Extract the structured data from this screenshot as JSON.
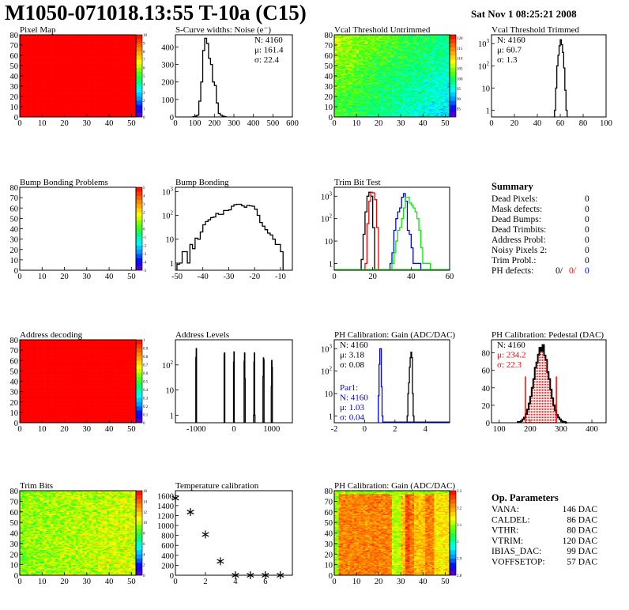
{
  "header": {
    "title": "M1050-071018.13:55 T-10a (C15)",
    "date": "Sat Nov  1 08:25:21 2008"
  },
  "palette": [
    "#6600cc",
    "#0000ff",
    "#0099ff",
    "#00ffff",
    "#00ff66",
    "#66ff00",
    "#ffff00",
    "#ffaa00",
    "#ff5500",
    "#ff0000"
  ],
  "chart_data": [
    {
      "id": "pixel-map",
      "type": "heatmap",
      "title": "Pixel Map",
      "xlim": [
        0,
        52
      ],
      "ylim": [
        0,
        80
      ],
      "xticks": [
        0,
        10,
        20,
        30,
        40,
        50
      ],
      "yticks": [
        0,
        10,
        20,
        30,
        40,
        50,
        60,
        70,
        80
      ],
      "zlim": [
        0,
        10
      ],
      "zticks": [
        "0",
        "1",
        "2",
        "3",
        "4",
        "5",
        "6",
        "7",
        "8",
        "9",
        "10"
      ],
      "pattern": "uniform",
      "value": 10
    },
    {
      "id": "s-curve-widths",
      "type": "bar",
      "title": "S-Curve widths: Noise (e⁻)",
      "xlim": [
        0,
        600
      ],
      "ylim": [
        0,
        470
      ],
      "xticks": [
        0,
        100,
        200,
        300,
        400,
        500,
        600
      ],
      "yticks": [
        0,
        100,
        200,
        300,
        400
      ],
      "log": false,
      "series": [
        {
          "color": "#000000",
          "x0": 90,
          "bw": 10,
          "values": [
            2,
            5,
            10,
            90,
            200,
            380,
            450,
            420,
            335,
            300,
            200,
            180,
            80,
            20,
            10,
            5,
            2
          ]
        }
      ],
      "stats": [
        {
          "text": "N: 4160",
          "color": "#000000"
        },
        {
          "text": "μ: 161.4",
          "color": "#000000"
        },
        {
          "text": "σ: 22.4",
          "color": "#000000"
        }
      ],
      "stats_pos": "top-right"
    },
    {
      "id": "vcal-untrimmed",
      "type": "heatmap",
      "title": "Vcal Threshold Untrimmed",
      "xlim": [
        0,
        52
      ],
      "ylim": [
        0,
        80
      ],
      "xticks": [
        0,
        10,
        20,
        30,
        40,
        50
      ],
      "yticks": [
        0,
        10,
        20,
        30,
        40,
        50,
        60,
        70,
        80
      ],
      "zlim": [
        81,
        125
      ],
      "zticks": [
        "85",
        "90",
        "95",
        "100",
        "105",
        "110",
        "115",
        "120"
      ],
      "pattern": "vcal"
    },
    {
      "id": "vcal-trimmed",
      "type": "bar",
      "title": "Vcal Threshold Trimmed",
      "xlim": [
        0,
        100
      ],
      "ylim": [
        0.5,
        2500
      ],
      "xticks": [
        0,
        20,
        40,
        60,
        80,
        100
      ],
      "yticks": [
        1,
        10,
        100,
        1000
      ],
      "log": true,
      "series": [
        {
          "color": "#000000",
          "x0": 54,
          "bw": 1,
          "values": [
            0,
            1,
            10,
            100,
            300,
            800,
            1500,
            900,
            400,
            80,
            8,
            1
          ]
        }
      ],
      "stats": [
        {
          "text": "N: 4160",
          "color": "#000000"
        },
        {
          "text": "μ: 60.7",
          "color": "#000000"
        },
        {
          "text": "σ:  1.3",
          "color": "#000000"
        }
      ],
      "stats_pos": "top-left"
    },
    {
      "id": "bump-bonding-problems",
      "type": "heatmap",
      "title": "Bump Bonding Problems",
      "xlim": [
        0,
        52
      ],
      "ylim": [
        0,
        80
      ],
      "xticks": [
        0,
        10,
        20,
        30,
        40,
        50
      ],
      "yticks": [
        0,
        10,
        20,
        30,
        40,
        50,
        60,
        70,
        80
      ],
      "zlim": [
        -5,
        5
      ],
      "zticks": [
        "-5",
        "-4",
        "-3",
        "-2",
        "-1",
        "0",
        "1",
        "2",
        "3",
        "4",
        "5"
      ],
      "pattern": "empty"
    },
    {
      "id": "bump-bonding",
      "type": "bar",
      "title": "Bump Bonding",
      "xlim": [
        -50.6,
        -5.4
      ],
      "ylim": [
        0.5,
        1500
      ],
      "xticks": [
        -50,
        -40,
        -30,
        -20,
        -10
      ],
      "yticks": [
        1,
        10,
        100,
        1000
      ],
      "log": true,
      "series": [
        {
          "color": "#000000",
          "x0": -50,
          "bw": 1,
          "values": [
            0.9,
            1,
            3,
            3,
            1,
            6,
            4,
            11,
            10,
            20,
            40,
            55,
            65,
            80,
            85,
            120,
            110,
            110,
            160,
            160,
            170,
            240,
            280,
            290,
            290,
            250,
            220,
            260,
            250,
            240,
            180,
            100,
            50,
            35,
            25,
            18,
            15,
            10,
            6,
            6,
            3
          ]
        }
      ]
    },
    {
      "id": "trim-bit-test",
      "type": "bar",
      "title": "Trim Bit Test",
      "xlim": [
        0,
        60
      ],
      "ylim": [
        0.5,
        2500
      ],
      "xticks": [
        0,
        20,
        40,
        60
      ],
      "yticks": [
        1,
        10,
        100,
        1000
      ],
      "log": true,
      "series": [
        {
          "color": "#000000",
          "x0": 14,
          "bw": 1,
          "values": [
            1.5,
            20,
            200,
            1000,
            1500,
            1000,
            40
          ]
        },
        {
          "color": "#ff0000",
          "x0": 16,
          "bw": 1,
          "values": [
            1,
            60,
            600,
            1500,
            1400,
            700,
            40
          ]
        },
        {
          "color": "#0000ff",
          "x0": 29,
          "bw": 1,
          "values": [
            1,
            3,
            30,
            100,
            200,
            300,
            900,
            1300,
            600,
            30,
            20,
            5,
            1,
            1,
            1,
            1
          ]
        },
        {
          "color": "#00ee00",
          "x0": 30,
          "bw": 1,
          "values": [
            1,
            3,
            10,
            30,
            40,
            100,
            300,
            900,
            900,
            500,
            400,
            300,
            200,
            100,
            30,
            5,
            1,
            1,
            1,
            1
          ]
        }
      ]
    },
    {
      "id": "address-decoding",
      "type": "heatmap",
      "title": "Address decoding",
      "xlim": [
        0,
        52
      ],
      "ylim": [
        0,
        80
      ],
      "xticks": [
        0,
        10,
        20,
        30,
        40,
        50
      ],
      "yticks": [
        0,
        10,
        20,
        30,
        40,
        50,
        60,
        70,
        80
      ],
      "zlim": [
        0,
        1
      ],
      "zticks": [
        "0",
        "0.1",
        "0.2",
        "0.3",
        "0.4",
        "0.5",
        "0.6",
        "0.7",
        "0.8",
        "0.9",
        "1"
      ],
      "pattern": "uniform",
      "value": 1
    },
    {
      "id": "address-levels",
      "type": "bar",
      "title": "Address Levels",
      "xlim": [
        -1550,
        1550
      ],
      "ylim": [
        0.5,
        1000
      ],
      "xticks": [
        -1000,
        0,
        1000
      ],
      "yticks": [
        1,
        10,
        100
      ],
      "log": true,
      "series": [
        {
          "color": "#000000",
          "x0": -1010,
          "bw": 10,
          "values": [
            200,
            450
          ]
        },
        {
          "color": "#000000",
          "x0": -260,
          "bw": 10,
          "values": [
            270,
            300
          ]
        },
        {
          "color": "#000000",
          "x0": -10,
          "bw": 10,
          "values": [
            130,
            330
          ]
        },
        {
          "color": "#000000",
          "x0": 270,
          "bw": 10,
          "values": [
            140,
            300,
            28
          ]
        },
        {
          "color": "#000000",
          "x0": 520,
          "bw": 10,
          "values": [
            1,
            130,
            300,
            1
          ]
        },
        {
          "color": "#000000",
          "x0": 770,
          "bw": 10,
          "values": [
            35,
            190,
            160
          ]
        },
        {
          "color": "#000000",
          "x0": 990,
          "bw": 10,
          "values": [
            14,
            150,
            80
          ]
        }
      ]
    },
    {
      "id": "ph-gain-hist",
      "type": "bar",
      "title": "PH Calibration: Gain (ADC/DAC)",
      "xlim": [
        -2,
        5.6
      ],
      "ylim": [
        0.5,
        2500
      ],
      "xticks": [
        -2,
        0,
        2,
        4
      ],
      "yticks": [
        1,
        10,
        100,
        1000
      ],
      "log": true,
      "series": [
        {
          "color": "#0000ff",
          "x0": 0.9,
          "bw": 0.05,
          "values": [
            8,
            200,
            1000,
            1000,
            20,
            1
          ]
        },
        {
          "color": "#000000",
          "x0": 2.8,
          "bw": 0.05,
          "values": [
            1,
            10,
            30,
            150,
            400,
            700,
            400,
            10,
            1
          ]
        }
      ],
      "stats": [
        {
          "text": "N: 4160",
          "color": "#000000"
        },
        {
          "text": "μ: 3.18",
          "color": "#000000"
        },
        {
          "text": "σ: 0.08",
          "color": "#000000"
        }
      ],
      "stats_pos": "top-left",
      "stats2": [
        {
          "text": "Par1:",
          "color": "#0000ff"
        },
        {
          "text": "N: 4160",
          "color": "#0000ff"
        },
        {
          "text": "μ: 1.03",
          "color": "#0000ff"
        },
        {
          "text": "σ: 0.04",
          "color": "#0000ff"
        }
      ]
    },
    {
      "id": "ph-pedestal",
      "type": "bar",
      "title": "PH Calibration: Pedestal (DAC)",
      "xlim": [
        75,
        446
      ],
      "ylim": [
        0,
        95
      ],
      "xticks": [
        100,
        200,
        300,
        400
      ],
      "yticks": [
        0,
        20,
        40,
        60,
        80
      ],
      "log": false,
      "series": [
        {
          "color": "#000000",
          "x0": 160,
          "bw": 5,
          "values": [
            1,
            1,
            2,
            4,
            6,
            10,
            15,
            22,
            30,
            40,
            50,
            63,
            69,
            78,
            86,
            82,
            89,
            77,
            72,
            58,
            50,
            38,
            28,
            20,
            14,
            9,
            6,
            4,
            2,
            1,
            1,
            0
          ]
        }
      ],
      "fit_range": [
        185,
        285
      ],
      "fit_color": "#ff0000",
      "stats": [
        {
          "text": "N: 4160",
          "color": "#000000"
        },
        {
          "text": "μ: 234.2",
          "color": "#ff0000"
        },
        {
          "text": "σ: 22.3",
          "color": "#ff0000"
        }
      ],
      "stats_pos": "top-left"
    },
    {
      "id": "trim-bits",
      "type": "heatmap",
      "title": "Trim Bits",
      "xlim": [
        0,
        52
      ],
      "ylim": [
        0,
        80
      ],
      "xticks": [
        0,
        10,
        20,
        30,
        40,
        50
      ],
      "yticks": [
        0,
        10,
        20,
        30,
        40,
        50,
        60,
        70,
        80
      ],
      "zlim": [
        0,
        16
      ],
      "zticks": [
        "0",
        "2",
        "4",
        "6",
        "8",
        "10",
        "12",
        "14",
        "16"
      ],
      "pattern": "trim"
    },
    {
      "id": "temperature-calibration",
      "type": "scatter",
      "title": "Temperature calibration",
      "xlim": [
        0,
        7.8
      ],
      "ylim": [
        0,
        1700
      ],
      "xticks": [
        0,
        2,
        4,
        6
      ],
      "yticks": [
        0,
        200,
        400,
        600,
        800,
        1000,
        1200,
        1400,
        1600
      ],
      "x": [
        0,
        1,
        2,
        3,
        4,
        5,
        6,
        7
      ],
      "y": [
        1550,
        1270,
        820,
        280,
        0,
        0,
        0,
        0
      ],
      "marker": "star"
    },
    {
      "id": "ph-gain-map",
      "type": "heatmap",
      "title": "PH Calibration: Gain (ADC/DAC)",
      "xlim": [
        0,
        52
      ],
      "ylim": [
        0,
        80
      ],
      "xticks": [
        0,
        10,
        20,
        30,
        40,
        50
      ],
      "yticks": [
        0,
        10,
        20,
        30,
        40,
        50,
        60,
        70,
        80
      ],
      "zlim": [
        2.75,
        3.35
      ],
      "zticks": [
        "2.8",
        "2.9",
        "3",
        "3.1",
        "3.2",
        "3.3"
      ],
      "pattern": "gain"
    }
  ],
  "summary": {
    "title": "Summary",
    "rows": [
      {
        "label": "Dead Pixels:",
        "value": "0"
      },
      {
        "label": "Mask defects:",
        "value": "0"
      },
      {
        "label": "Dead Bumps:",
        "value": "0"
      },
      {
        "label": "Dead Trimbits:",
        "value": "0"
      },
      {
        "label": "Address Probl:",
        "value": "0"
      },
      {
        "label": "Noisy Pixels 2:",
        "value": "0"
      },
      {
        "label": "Trim Probl.:",
        "value": "0"
      }
    ],
    "ph_defects": {
      "label": "PH defects:",
      "v1": "0/",
      "v2": "0/",
      "v3": "0",
      "c1": "#000000",
      "c2": "#ff0000",
      "c3": "#0000ff"
    }
  },
  "op_params": {
    "title": "Op. Parameters",
    "rows": [
      {
        "label": "VANA:",
        "value": "146 DAC"
      },
      {
        "label": "CALDEL:",
        "value": "86 DAC"
      },
      {
        "label": "VTHR:",
        "value": "80 DAC"
      },
      {
        "label": "VTRIM:",
        "value": "120 DAC"
      },
      {
        "label": "IBIAS_DAC:",
        "value": "99 DAC"
      },
      {
        "label": "VOFFSETOP:",
        "value": "57 DAC"
      }
    ]
  }
}
